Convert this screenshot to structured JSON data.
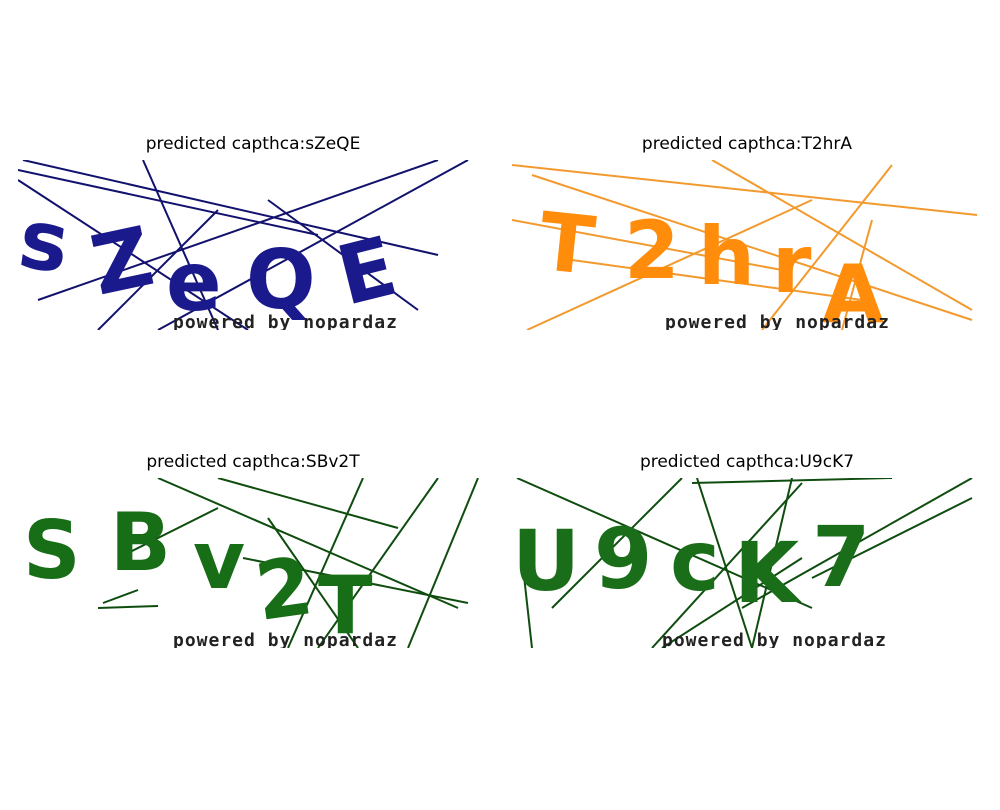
{
  "panels": [
    {
      "title": "predicted capthca:sZeQE",
      "captcha_text": "sZeQE",
      "watermark": "powered by nopardaz",
      "text_color": "#1a1a8c",
      "line_color": "#12126e"
    },
    {
      "title": "predicted capthca:T2hrA",
      "captcha_text": "T2hrA",
      "watermark": "powered by nopardaz",
      "text_color": "#ff8c0a",
      "line_color": "#f29a2e"
    },
    {
      "title": "predicted capthca:SBv2T",
      "captcha_text": "SBv2T",
      "watermark": "powered by nopardaz",
      "text_color": "#176e17",
      "line_color": "#0f4d0f"
    },
    {
      "title": "predicted capthca:U9cK7",
      "captcha_text": "U9cK7",
      "watermark": "powered by nopardaz",
      "text_color": "#1a6e1a",
      "line_color": "#0f4d0f"
    }
  ]
}
